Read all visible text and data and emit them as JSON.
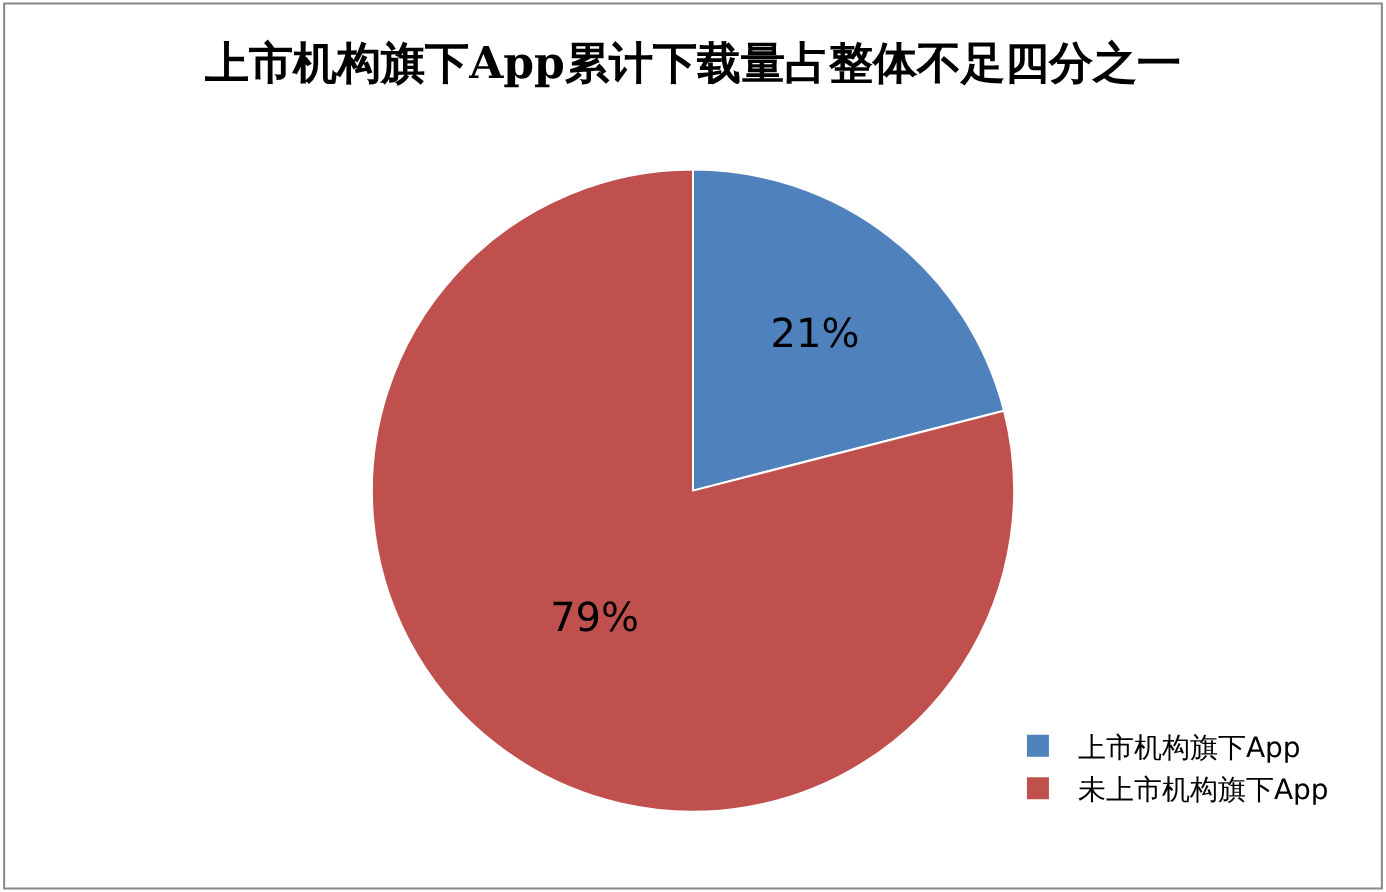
{
  "chart_data": {
    "type": "pie",
    "title": "上市机构旗下App累计下载量占整体不足四分之一",
    "categories": [
      "上市机构旗下App",
      "未上市机构旗下App"
    ],
    "values": [
      21,
      79
    ],
    "colors": [
      "#4f81bd",
      "#c0504d"
    ],
    "value_labels": [
      "21%",
      "79%"
    ],
    "legend": "bottom right"
  }
}
